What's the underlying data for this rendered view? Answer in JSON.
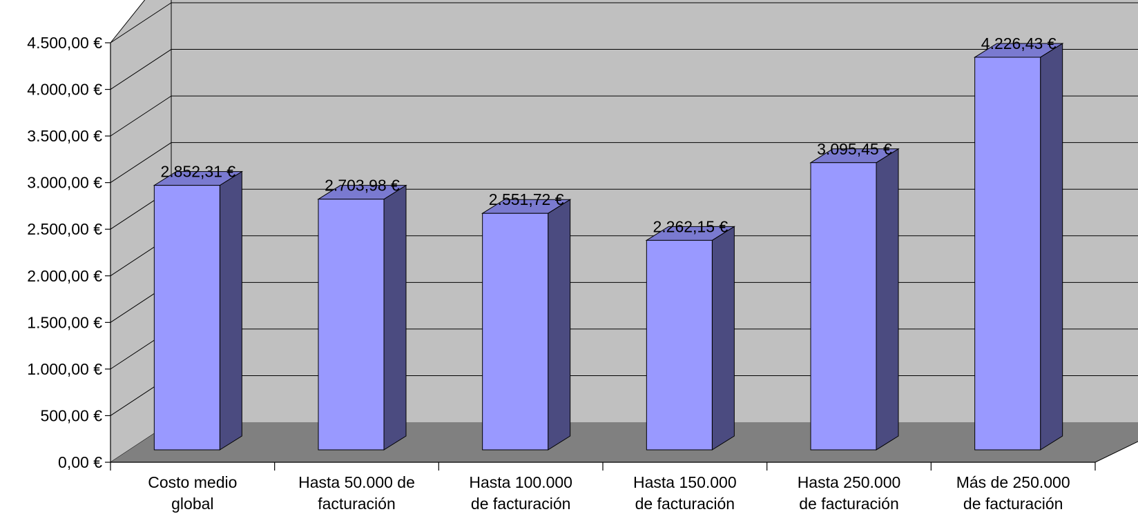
{
  "chart_data": {
    "type": "bar",
    "categories": [
      [
        "Costo medio",
        "global"
      ],
      [
        "Hasta 50.000 de",
        "facturación"
      ],
      [
        "Hasta 100.000",
        "de facturación"
      ],
      [
        "Hasta 150.000",
        "de facturación"
      ],
      [
        "Hasta 250.000",
        "de facturación"
      ],
      [
        "Más de 250.000",
        "de facturación"
      ]
    ],
    "values": [
      2852.31,
      2703.98,
      2551.72,
      2262.15,
      3095.45,
      4226.43
    ],
    "data_labels": [
      "2.852,31 €",
      "2.703,98 €",
      "2.551,72 €",
      "2.262,15 €",
      "3.095,45 €",
      "4.226,43 €"
    ],
    "y_ticks": [
      {
        "value": 0,
        "label": "0,00 €"
      },
      {
        "value": 500,
        "label": "500,00 €"
      },
      {
        "value": 1000,
        "label": "1.000,00 €"
      },
      {
        "value": 1500,
        "label": "1.500,00 €"
      },
      {
        "value": 2000,
        "label": "2.000,00 €"
      },
      {
        "value": 2500,
        "label": "2.500,00 €"
      },
      {
        "value": 3000,
        "label": "3.000,00 €"
      },
      {
        "value": 3500,
        "label": "3.500,00 €"
      },
      {
        "value": 4000,
        "label": "4.000,00 €"
      },
      {
        "value": 4500,
        "label": "4.500,00 €"
      }
    ],
    "ylim": [
      0,
      4500
    ],
    "grid": true,
    "three_d": true,
    "title": "",
    "xlabel": "",
    "ylabel": "",
    "colors": {
      "bar_front": "#9999ff",
      "bar_side": "#4b4b80",
      "bar_top": "#7a7ad0",
      "back_wall": "#c0c0c0",
      "floor": "#808080",
      "grid": "#000000"
    }
  }
}
